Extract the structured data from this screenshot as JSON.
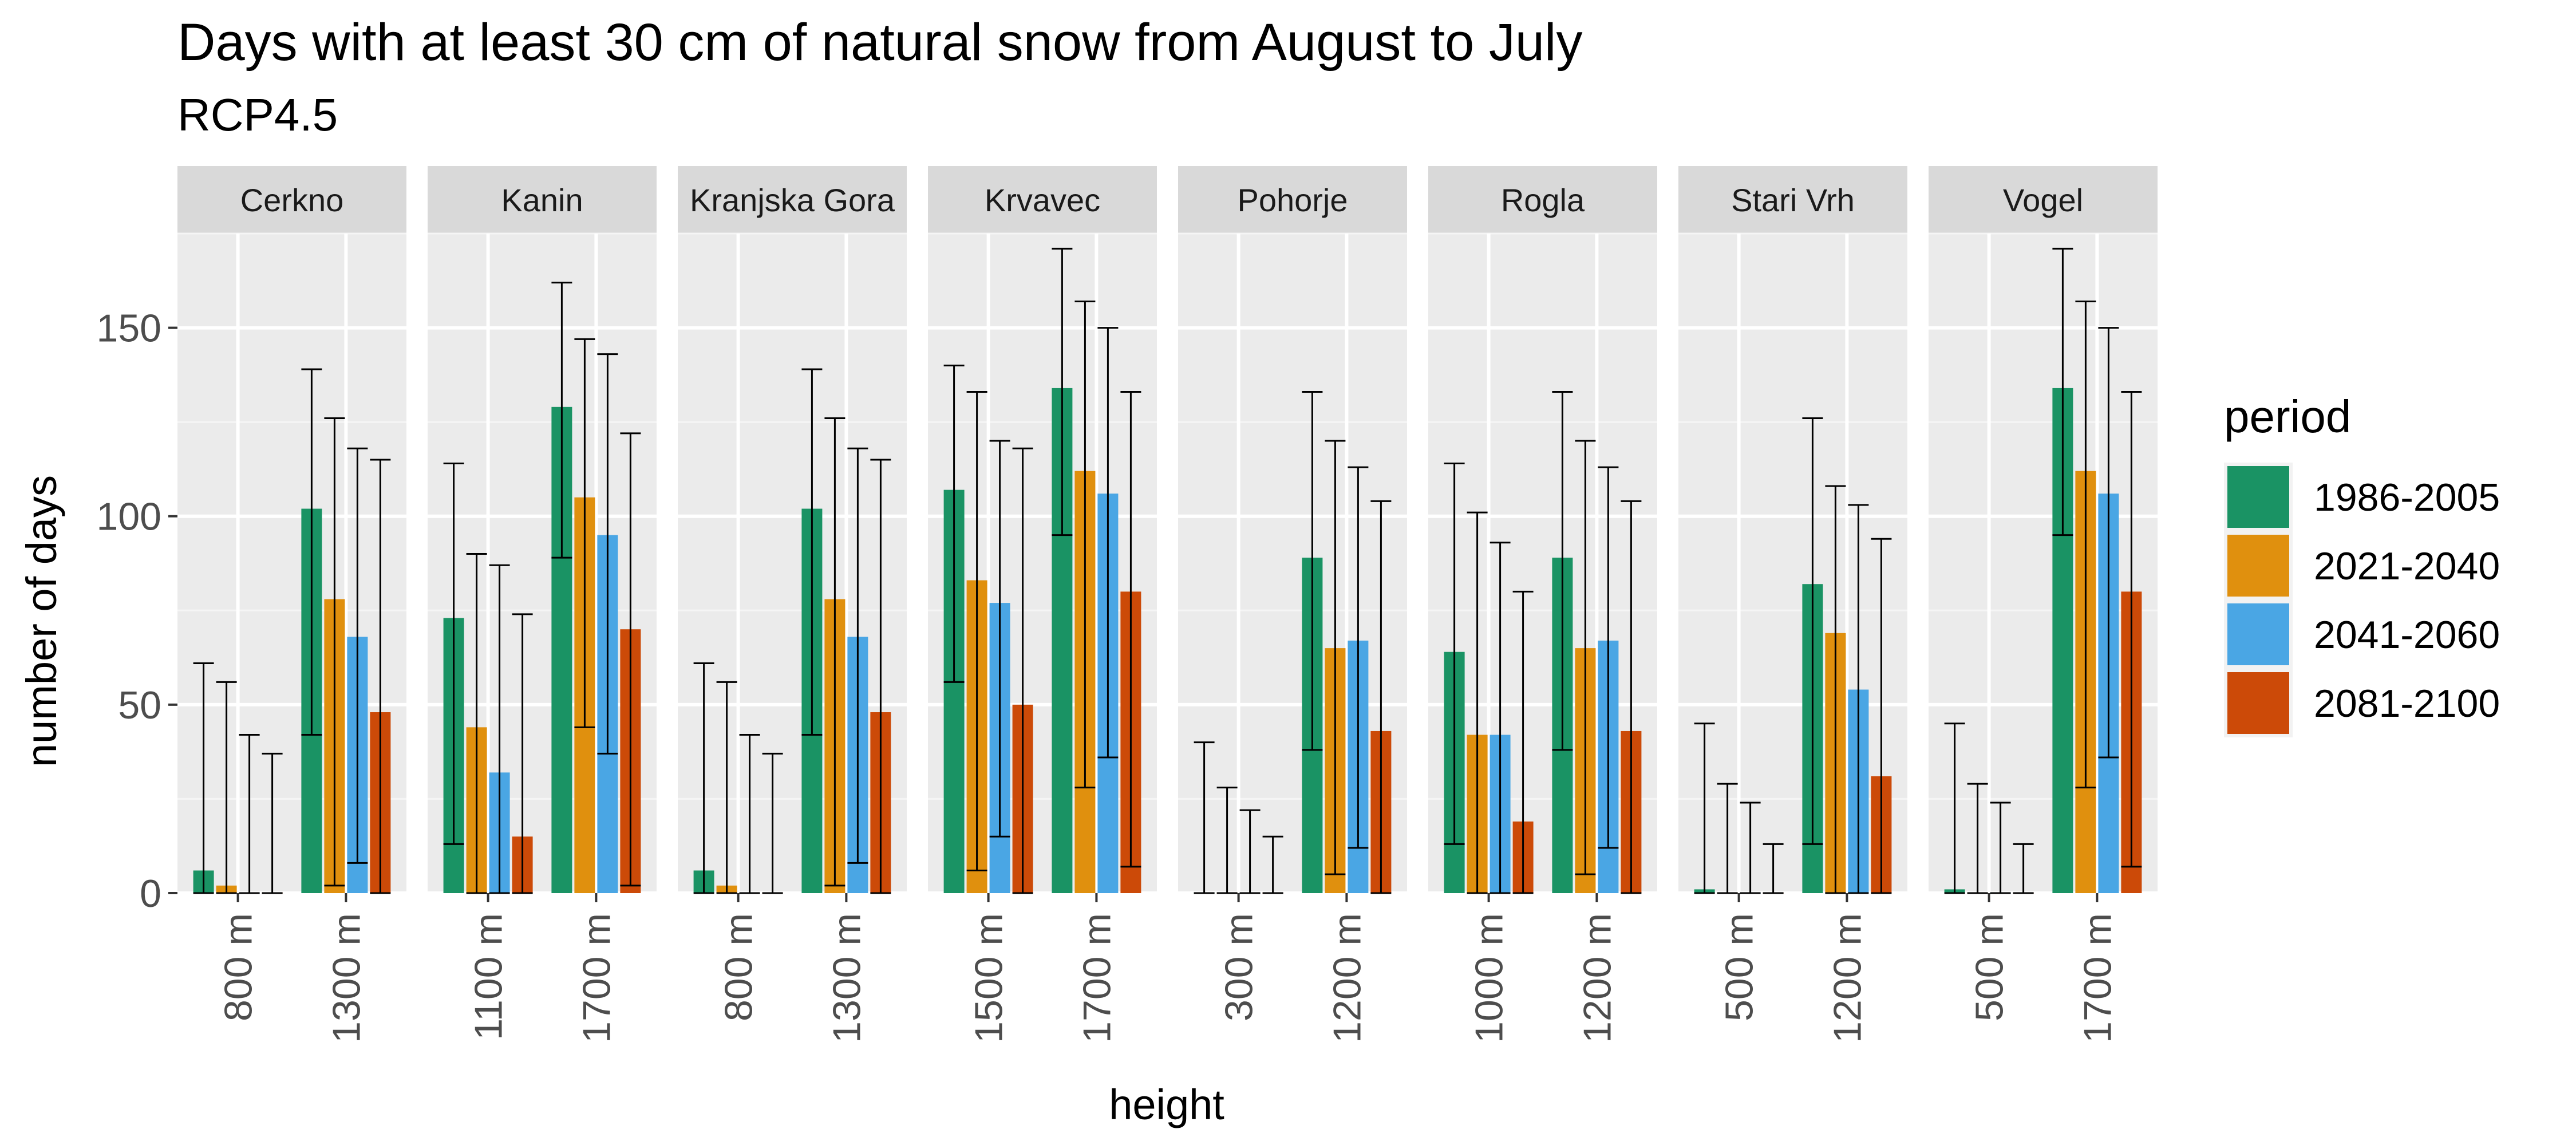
{
  "chart_data": {
    "type": "bar",
    "title": "Days with at least 30 cm of natural snow from August to July",
    "subtitle": "RCP4.5",
    "xlabel": "height",
    "ylabel": "number of days",
    "ylim": [
      0,
      175
    ],
    "y_ticks": [
      0,
      50,
      100,
      150
    ],
    "grid": true,
    "legend": {
      "title": "period",
      "placement": "right",
      "entries": [
        "1986-2005",
        "2021-2040",
        "2041-2060",
        "2081-2100"
      ]
    },
    "colors": [
      "#1a9364",
      "#e0900e",
      "#4aa6e4",
      "#cc4a08"
    ],
    "error_bars": true,
    "facets": [
      {
        "name": "Cerkno",
        "groups": [
          {
            "label": "800 m",
            "values": [
              6,
              2,
              0,
              0
            ],
            "lower": [
              0,
              0,
              0,
              0
            ],
            "upper": [
              61,
              56,
              42,
              37
            ]
          },
          {
            "label": "1300 m",
            "values": [
              102,
              78,
              68,
              48
            ],
            "lower": [
              42,
              2,
              8,
              0
            ],
            "upper": [
              139,
              126,
              118,
              115
            ]
          }
        ]
      },
      {
        "name": "Kanin",
        "groups": [
          {
            "label": "1100 m",
            "values": [
              73,
              44,
              32,
              15
            ],
            "lower": [
              13,
              0,
              0,
              0
            ],
            "upper": [
              114,
              90,
              87,
              74
            ]
          },
          {
            "label": "1700 m",
            "values": [
              129,
              105,
              95,
              70
            ],
            "lower": [
              89,
              44,
              37,
              2
            ],
            "upper": [
              162,
              147,
              143,
              122
            ]
          }
        ]
      },
      {
        "name": "Kranjska Gora",
        "groups": [
          {
            "label": "800 m",
            "values": [
              6,
              2,
              0,
              0
            ],
            "lower": [
              0,
              0,
              0,
              0
            ],
            "upper": [
              61,
              56,
              42,
              37
            ]
          },
          {
            "label": "1300 m",
            "values": [
              102,
              78,
              68,
              48
            ],
            "lower": [
              42,
              2,
              8,
              0
            ],
            "upper": [
              139,
              126,
              118,
              115
            ]
          }
        ]
      },
      {
        "name": "Krvavec",
        "groups": [
          {
            "label": "1500 m",
            "values": [
              107,
              83,
              77,
              50
            ],
            "lower": [
              56,
              6,
              15,
              0
            ],
            "upper": [
              140,
              133,
              120,
              118
            ]
          },
          {
            "label": "1700 m",
            "values": [
              134,
              112,
              106,
              80
            ],
            "lower": [
              95,
              28,
              36,
              7
            ],
            "upper": [
              171,
              157,
              150,
              133
            ]
          }
        ]
      },
      {
        "name": "Pohorje",
        "groups": [
          {
            "label": "300 m",
            "values": [
              0,
              0,
              0,
              0
            ],
            "lower": [
              0,
              0,
              0,
              0
            ],
            "upper": [
              40,
              28,
              22,
              15
            ]
          },
          {
            "label": "1200 m",
            "values": [
              89,
              65,
              67,
              43
            ],
            "lower": [
              38,
              5,
              12,
              0
            ],
            "upper": [
              133,
              120,
              113,
              104
            ]
          }
        ]
      },
      {
        "name": "Rogla",
        "groups": [
          {
            "label": "1000 m",
            "values": [
              64,
              42,
              42,
              19
            ],
            "lower": [
              13,
              0,
              0,
              0
            ],
            "upper": [
              114,
              101,
              93,
              80
            ]
          },
          {
            "label": "1200 m",
            "values": [
              89,
              65,
              67,
              43
            ],
            "lower": [
              38,
              5,
              12,
              0
            ],
            "upper": [
              133,
              120,
              113,
              104
            ]
          }
        ]
      },
      {
        "name": "Stari Vrh",
        "groups": [
          {
            "label": "500 m",
            "values": [
              1,
              0,
              0,
              0
            ],
            "lower": [
              0,
              0,
              0,
              0
            ],
            "upper": [
              45,
              29,
              24,
              13
            ]
          },
          {
            "label": "1200 m",
            "values": [
              82,
              69,
              54,
              31
            ],
            "lower": [
              13,
              0,
              0,
              0
            ],
            "upper": [
              126,
              108,
              103,
              94
            ]
          }
        ]
      },
      {
        "name": "Vogel",
        "groups": [
          {
            "label": "500 m",
            "values": [
              1,
              0,
              0,
              0
            ],
            "lower": [
              0,
              0,
              0,
              0
            ],
            "upper": [
              45,
              29,
              24,
              13
            ]
          },
          {
            "label": "1700 m",
            "values": [
              134,
              112,
              106,
              80
            ],
            "lower": [
              95,
              28,
              36,
              7
            ],
            "upper": [
              171,
              157,
              150,
              133
            ]
          }
        ]
      }
    ]
  }
}
